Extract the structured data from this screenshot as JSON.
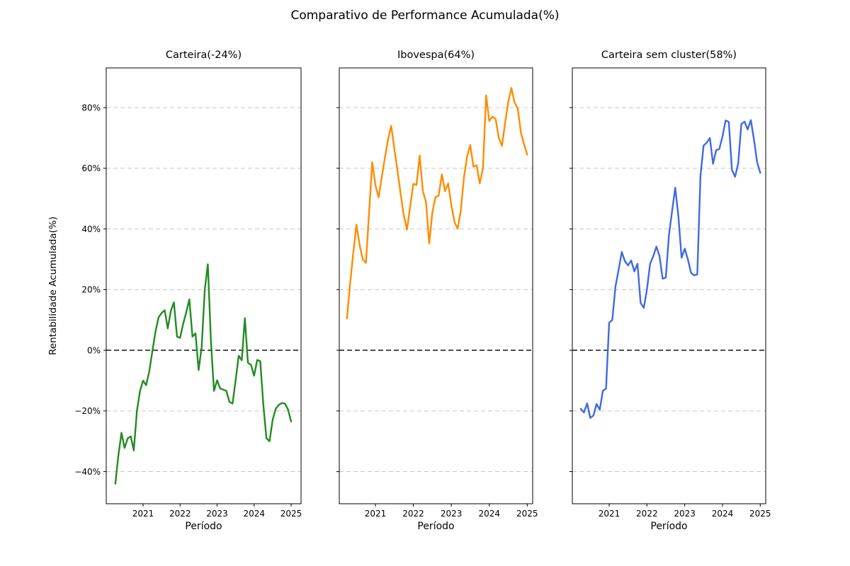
{
  "figure": {
    "title": "Comparativo de Performance Acumulada(%)",
    "ylabel": "Rentabilidade Acumulada(%)",
    "xlabel": "Período",
    "background": "#ffffff",
    "grid_color": "#c8c8c8",
    "zero_line_color": "#000000",
    "axis_color": "#000000"
  },
  "chart_data": [
    {
      "type": "line",
      "title": "Carteira(-24%)",
      "series_name": "Carteira",
      "final_return_pct": -24,
      "color": "#228b22",
      "x_start": "2020-04",
      "x_end": "2025-01",
      "x_freq": "monthly",
      "x_tick_labels": [
        "2021",
        "2022",
        "2023",
        "2024",
        "2025"
      ],
      "x_tick_month_indices": [
        9,
        21,
        33,
        45,
        57
      ],
      "y_tick_labels": [
        "−40%",
        "−20%",
        "0%",
        "20%",
        "40%",
        "60%",
        "80%"
      ],
      "y_tick_values": [
        -40,
        -20,
        0,
        20,
        40,
        60,
        80
      ],
      "ylim": [
        -50.6,
        93.1
      ],
      "show_y_tick_labels": true,
      "grid": true,
      "zero_line": true,
      "values": [
        -44,
        -34.5,
        -27.2,
        -32.2,
        -29.1,
        -28.4,
        -33,
        -20,
        -13.5,
        -10,
        -11.5,
        -7,
        -0.5,
        6,
        10.8,
        12.3,
        13.2,
        7.2,
        13,
        15.8,
        4.5,
        4.1,
        8.7,
        12.5,
        16.8,
        4.5,
        5.6,
        -6.5,
        1.0,
        20,
        28.4,
        3,
        -13.4,
        -9.9,
        -12.6,
        -13.0,
        -13.4,
        -17,
        -17.6,
        -10,
        -1.8,
        -3.3,
        10.6,
        -4.1,
        -4.8,
        -8.4,
        -3.2,
        -3.6,
        -18,
        -29,
        -30,
        -23,
        -19.3,
        -18,
        -17.4,
        -17.6,
        -19.5,
        -23.5
      ]
    },
    {
      "type": "line",
      "title": "Ibovespa(64%)",
      "series_name": "Ibovespa",
      "final_return_pct": 64,
      "color": "#ff8c00",
      "x_start": "2020-04",
      "x_end": "2025-01",
      "x_freq": "monthly",
      "x_tick_labels": [
        "2021",
        "2022",
        "2023",
        "2024",
        "2025"
      ],
      "x_tick_month_indices": [
        9,
        21,
        33,
        45,
        57
      ],
      "y_tick_labels": [
        "−40%",
        "−20%",
        "0%",
        "20%",
        "40%",
        "60%",
        "80%"
      ],
      "y_tick_values": [
        -40,
        -20,
        0,
        20,
        40,
        60,
        80
      ],
      "ylim": [
        -50.6,
        93.1
      ],
      "show_y_tick_labels": false,
      "grid": true,
      "zero_line": true,
      "values": [
        10.5,
        22,
        32,
        41.4,
        34.7,
        30,
        28.8,
        45.5,
        62,
        54.5,
        50.4,
        57,
        63.5,
        69.5,
        74,
        66.3,
        59.2,
        51.4,
        44.3,
        39.8,
        47.5,
        54.9,
        54.5,
        64.2,
        52.4,
        49,
        35.2,
        45.5,
        50.5,
        51,
        58,
        52.5,
        55,
        48,
        42.3,
        40.1,
        46,
        57,
        64,
        67.7,
        60.5,
        61,
        55,
        60,
        84,
        75.6,
        77,
        76.3,
        70.1,
        67.4,
        74.8,
        81.8,
        86.5,
        81.7,
        79.8,
        71.7,
        68,
        64.5
      ]
    },
    {
      "type": "line",
      "title": "Carteira sem cluster(58%)",
      "series_name": "Carteira sem cluster",
      "final_return_pct": 58,
      "color": "#4169e1",
      "x_start": "2020-04",
      "x_end": "2025-01",
      "x_freq": "monthly",
      "x_tick_labels": [
        "2021",
        "2022",
        "2023",
        "2024",
        "2025"
      ],
      "x_tick_month_indices": [
        9,
        21,
        33,
        45,
        57
      ],
      "y_tick_labels": [
        "−40%",
        "−20%",
        "0%",
        "20%",
        "40%",
        "60%",
        "80%"
      ],
      "y_tick_values": [
        -40,
        -20,
        0,
        20,
        40,
        60,
        80
      ],
      "ylim": [
        -50.6,
        93.1
      ],
      "show_y_tick_labels": false,
      "grid": true,
      "zero_line": true,
      "values": [
        -19.3,
        -20.5,
        -17.5,
        -22.3,
        -21.5,
        -17.7,
        -19.6,
        -13.4,
        -12.6,
        9.1,
        10,
        21,
        26.5,
        32.4,
        29.4,
        28,
        29.6,
        26,
        28.5,
        15.6,
        14,
        20,
        28.5,
        31,
        34.2,
        31,
        23.6,
        24,
        38,
        46,
        53.6,
        44,
        30.5,
        33.5,
        30,
        25.6,
        24.7,
        25,
        57.5,
        67.5,
        68.5,
        70,
        61.5,
        66,
        66.4,
        70.5,
        75.8,
        75.3,
        59.5,
        57.2,
        61.7,
        74.6,
        75.4,
        72.8,
        75.9,
        69.5,
        62,
        58.5
      ]
    }
  ]
}
